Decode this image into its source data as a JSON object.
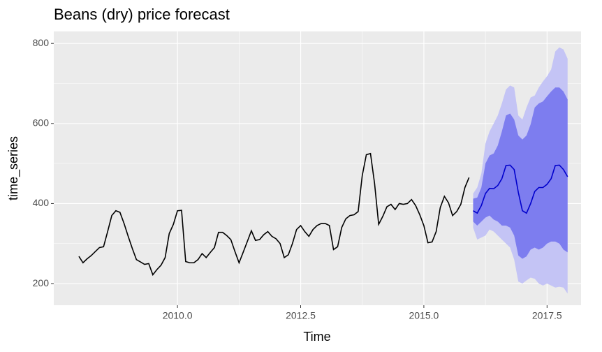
{
  "chart_data": {
    "type": "line",
    "title": "Beans (dry) price forecast",
    "x_label": "Time",
    "y_label": "time_series",
    "xlim": [
      2007.49,
      2018.19
    ],
    "ylim": [
      146,
      830
    ],
    "xticks": [
      {
        "value": 2010,
        "label": "2010.0"
      },
      2012.5,
      {
        "value": 2015,
        "label": "2015.0"
      },
      2017.5
    ],
    "yticks": [
      200,
      400,
      600,
      800
    ],
    "grid": true,
    "background": "#ebebeb",
    "color": "#000000",
    "x": [
      2008,
      2008.083,
      2008.167,
      2008.25,
      2008.333,
      2008.417,
      2008.5,
      2008.583,
      2008.667,
      2008.75,
      2008.833,
      2008.917,
      2009,
      2009.083,
      2009.167,
      2009.25,
      2009.333,
      2009.417,
      2009.5,
      2009.583,
      2009.667,
      2009.75,
      2009.833,
      2009.917,
      2010,
      2010.083,
      2010.167,
      2010.25,
      2010.333,
      2010.417,
      2010.5,
      2010.583,
      2010.667,
      2010.75,
      2010.833,
      2010.917,
      2011,
      2011.083,
      2011.167,
      2011.25,
      2011.333,
      2011.417,
      2011.5,
      2011.583,
      2011.667,
      2011.75,
      2011.833,
      2011.917,
      2012,
      2012.083,
      2012.167,
      2012.25,
      2012.333,
      2012.417,
      2012.5,
      2012.583,
      2012.667,
      2012.75,
      2012.833,
      2012.917,
      2013,
      2013.083,
      2013.167,
      2013.25,
      2013.333,
      2013.417,
      2013.5,
      2013.583,
      2013.667,
      2013.75,
      2013.833,
      2013.917,
      2014,
      2014.083,
      2014.167,
      2014.25,
      2014.333,
      2014.417,
      2014.5,
      2014.583,
      2014.667,
      2014.75,
      2014.833,
      2014.917,
      2015,
      2015.083,
      2015.167,
      2015.25,
      2015.333,
      2015.417,
      2015.5,
      2015.583,
      2015.667,
      2015.75,
      2015.833,
      2015.917
    ],
    "values": [
      268,
      252,
      262,
      270,
      280,
      290,
      292,
      330,
      370,
      382,
      378,
      350,
      318,
      288,
      260,
      254,
      248,
      250,
      222,
      235,
      246,
      265,
      325,
      348,
      382,
      383,
      255,
      252,
      252,
      260,
      275,
      265,
      278,
      290,
      328,
      328,
      320,
      310,
      280,
      252,
      278,
      305,
      332,
      308,
      310,
      322,
      330,
      318,
      312,
      300,
      265,
      272,
      300,
      335,
      345,
      330,
      318,
      335,
      345,
      350,
      350,
      345,
      285,
      292,
      340,
      362,
      370,
      372,
      380,
      470,
      522,
      525,
      450,
      348,
      368,
      392,
      398,
      385,
      400,
      398,
      400,
      410,
      395,
      372,
      345,
      302,
      304,
      330,
      390,
      418,
      402,
      370,
      380,
      398,
      440,
      465
    ],
    "forecast": {
      "color": "#0000cc",
      "color80": "#7d7def",
      "color95": "#c4c4f5",
      "x": [
        2016,
        2016.083,
        2016.167,
        2016.25,
        2016.333,
        2016.417,
        2016.5,
        2016.583,
        2016.667,
        2016.75,
        2016.833,
        2016.917,
        2017,
        2017.083,
        2017.167,
        2017.25,
        2017.333,
        2017.417,
        2017.5,
        2017.583,
        2017.667,
        2017.75,
        2017.833,
        2017.917
      ],
      "mean": [
        382,
        376,
        395,
        425,
        438,
        437,
        445,
        462,
        495,
        496,
        485,
        428,
        382,
        376,
        400,
        430,
        440,
        440,
        448,
        462,
        495,
        496,
        485,
        467
      ],
      "lo80": [
        355,
        345,
        355,
        365,
        370,
        360,
        355,
        345,
        345,
        340,
        320,
        270,
        262,
        268,
        285,
        290,
        285,
        290,
        300,
        305,
        305,
        300,
        285,
        278
      ],
      "hi80": [
        412,
        415,
        440,
        500,
        520,
        525,
        545,
        580,
        620,
        625,
        610,
        570,
        560,
        570,
        598,
        640,
        650,
        655,
        668,
        680,
        690,
        690,
        680,
        660
      ],
      "lo95": [
        340,
        310,
        315,
        320,
        335,
        330,
        320,
        310,
        300,
        290,
        260,
        205,
        200,
        208,
        215,
        212,
        200,
        195,
        200,
        195,
        190,
        192,
        190,
        175
      ],
      "hi95": [
        425,
        440,
        475,
        550,
        580,
        600,
        620,
        650,
        685,
        695,
        690,
        620,
        610,
        640,
        665,
        670,
        690,
        705,
        718,
        735,
        780,
        790,
        785,
        762
      ]
    }
  }
}
